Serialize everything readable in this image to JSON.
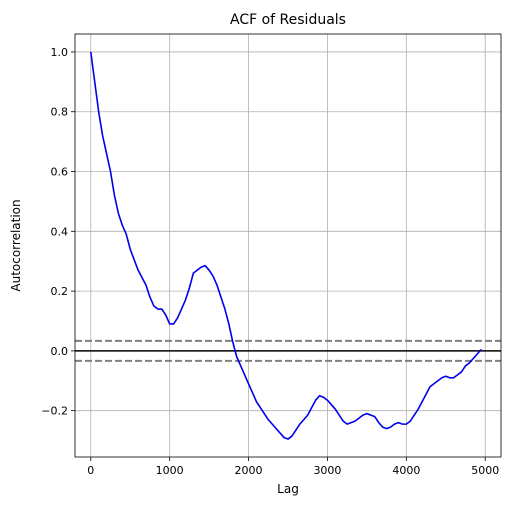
{
  "chart_data": {
    "type": "line",
    "title": "ACF of Residuals",
    "xlabel": "Lag",
    "ylabel": "Autocorrelation",
    "xlim": [
      -200,
      5200
    ],
    "ylim": [
      -0.355,
      1.06
    ],
    "xticks": [
      0,
      1000,
      2000,
      3000,
      4000,
      5000
    ],
    "xtick_labels": [
      "0",
      "1000",
      "2000",
      "3000",
      "4000",
      "5000"
    ],
    "yticks": [
      -0.2,
      0.0,
      0.2,
      0.4,
      0.6,
      0.8,
      1.0
    ],
    "ytick_labels": [
      "−0.2",
      "0.0",
      "0.2",
      "0.4",
      "0.6",
      "0.8",
      "1.0"
    ],
    "grid": true,
    "series": [
      {
        "color": "#0000ee",
        "x": [
          0,
          50,
          100,
          150,
          200,
          250,
          300,
          350,
          400,
          450,
          500,
          600,
          700,
          750,
          800,
          850,
          900,
          950,
          1000,
          1050,
          1100,
          1150,
          1200,
          1250,
          1300,
          1350,
          1400,
          1450,
          1500,
          1550,
          1600,
          1650,
          1700,
          1750,
          1800,
          1850,
          1900,
          1950,
          2000,
          2050,
          2100,
          2150,
          2200,
          2250,
          2300,
          2350,
          2400,
          2450,
          2500,
          2550,
          2600,
          2650,
          2700,
          2750,
          2800,
          2850,
          2900,
          2950,
          3000,
          3050,
          3100,
          3150,
          3200,
          3250,
          3300,
          3350,
          3400,
          3450,
          3500,
          3550,
          3600,
          3650,
          3700,
          3750,
          3800,
          3850,
          3900,
          3950,
          4000,
          4050,
          4100,
          4150,
          4200,
          4250,
          4300,
          4350,
          4400,
          4450,
          4500,
          4550,
          4600,
          4650,
          4700,
          4750,
          4800,
          4850,
          4900,
          4950
        ],
        "y": [
          1.0,
          0.9,
          0.8,
          0.72,
          0.66,
          0.6,
          0.52,
          0.46,
          0.42,
          0.39,
          0.34,
          0.27,
          0.22,
          0.18,
          0.15,
          0.14,
          0.14,
          0.12,
          0.09,
          0.09,
          0.11,
          0.14,
          0.17,
          0.21,
          0.26,
          0.27,
          0.28,
          0.285,
          0.27,
          0.25,
          0.22,
          0.18,
          0.14,
          0.09,
          0.03,
          -0.02,
          -0.05,
          -0.08,
          -0.11,
          -0.14,
          -0.17,
          -0.19,
          -0.21,
          -0.23,
          -0.245,
          -0.26,
          -0.275,
          -0.29,
          -0.295,
          -0.285,
          -0.265,
          -0.245,
          -0.23,
          -0.215,
          -0.19,
          -0.165,
          -0.15,
          -0.155,
          -0.165,
          -0.18,
          -0.195,
          -0.215,
          -0.235,
          -0.245,
          -0.24,
          -0.235,
          -0.225,
          -0.215,
          -0.21,
          -0.215,
          -0.22,
          -0.24,
          -0.255,
          -0.26,
          -0.255,
          -0.245,
          -0.24,
          -0.245,
          -0.245,
          -0.235,
          -0.215,
          -0.195,
          -0.17,
          -0.145,
          -0.12,
          -0.11,
          -0.1,
          -0.09,
          -0.085,
          -0.09,
          -0.09,
          -0.08,
          -0.07,
          -0.05,
          -0.04,
          -0.025,
          -0.01,
          0.005
        ]
      }
    ],
    "hlines": [
      {
        "y": 0.0,
        "color": "#000000",
        "style": "solid"
      },
      {
        "y": 0.0335,
        "color": "#808080",
        "style": "dashed"
      },
      {
        "y": -0.0335,
        "color": "#808080",
        "style": "dashed"
      }
    ]
  }
}
